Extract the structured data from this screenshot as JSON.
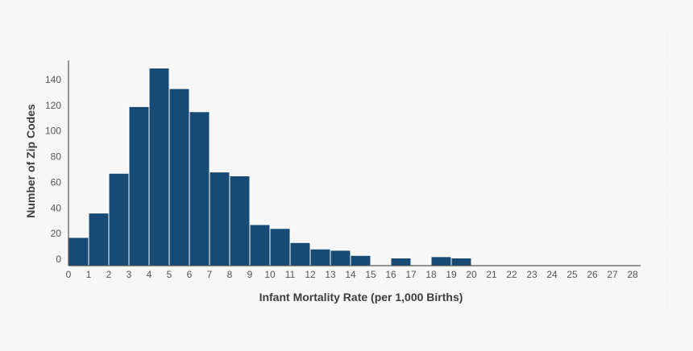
{
  "chart_data": {
    "type": "bar",
    "title": "",
    "xlabel": "Infant Mortality Rate (per 1,000 Births)",
    "ylabel": "Number of Zip Codes",
    "x_ticks": [
      "0",
      "1",
      "2",
      "3",
      "4",
      "5",
      "6",
      "7",
      "8",
      "9",
      "10",
      "11",
      "12",
      "13",
      "14",
      "15",
      "16",
      "17",
      "18",
      "19",
      "20",
      "21",
      "22",
      "23",
      "24",
      "25",
      "26",
      "27",
      "28"
    ],
    "y_ticks": [
      "0",
      "20",
      "40",
      "60",
      "80",
      "100",
      "120",
      "140"
    ],
    "bins": [
      {
        "start": 0,
        "end": 1,
        "value": 17
      },
      {
        "start": 1,
        "end": 2,
        "value": 36
      },
      {
        "start": 2,
        "end": 3,
        "value": 67
      },
      {
        "start": 3,
        "end": 4,
        "value": 119
      },
      {
        "start": 4,
        "end": 5,
        "value": 149
      },
      {
        "start": 5,
        "end": 6,
        "value": 133
      },
      {
        "start": 6,
        "end": 7,
        "value": 115
      },
      {
        "start": 7,
        "end": 8,
        "value": 68
      },
      {
        "start": 8,
        "end": 9,
        "value": 65
      },
      {
        "start": 9,
        "end": 10,
        "value": 27
      },
      {
        "start": 10,
        "end": 11,
        "value": 24
      },
      {
        "start": 11,
        "end": 12,
        "value": 13
      },
      {
        "start": 12,
        "end": 13,
        "value": 8
      },
      {
        "start": 13,
        "end": 14,
        "value": 7
      },
      {
        "start": 14,
        "end": 15,
        "value": 3
      },
      {
        "start": 16,
        "end": 17,
        "value": 1
      },
      {
        "start": 18,
        "end": 19,
        "value": 2
      },
      {
        "start": 19,
        "end": 20,
        "value": 1
      }
    ],
    "xlim": [
      0,
      28.4
    ],
    "ylim": [
      -5,
      155
    ],
    "grid": false,
    "bar_color": "#174a74",
    "bar_edge_color": "#ffffff"
  }
}
